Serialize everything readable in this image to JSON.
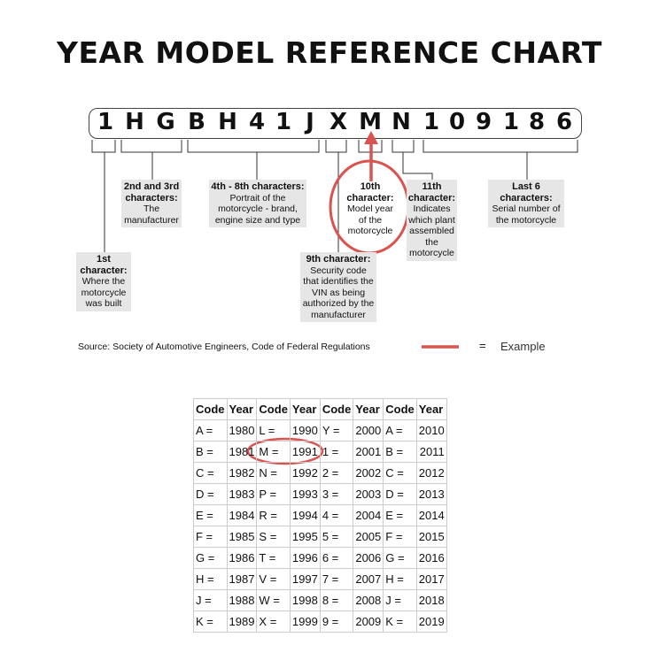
{
  "title": "YEAR MODEL REFERENCE CHART",
  "vin": [
    "1",
    "H",
    "G",
    "B",
    "H",
    "4",
    "1",
    "J",
    "X",
    "M",
    "N",
    "1",
    "0",
    "9",
    "1",
    "8",
    "6"
  ],
  "labels": {
    "c1": {
      "head": "1st character:",
      "body": "Where the motorcycle was built"
    },
    "c2": {
      "head": "2nd and 3rd characters:",
      "body": "The manufacturer"
    },
    "c4": {
      "head": "4th - 8th characters:",
      "body": "Portrait of the motorcycle - brand, engine size and type"
    },
    "c9": {
      "head": "9th character:",
      "body": "Security code that identifies the VIN as being authorized by the manufacturer"
    },
    "c10": {
      "head": "10th character:",
      "body": "Model year of the motorcycle"
    },
    "c11": {
      "head": "11th character:",
      "body": "Indicates which plant assembled the motorcycle"
    },
    "c12": {
      "head": "Last 6 characters:",
      "body": "Serial number of the motorcycle"
    }
  },
  "source": "Source:  Society of Automotive Engineers, Code of Federal Regulations",
  "legend": {
    "eq": "=",
    "label": "Example",
    "color": "#d9534f"
  },
  "table": {
    "headers": [
      "Code",
      "Year",
      "Code",
      "Year",
      "Code",
      "Year",
      "Code",
      "Year"
    ],
    "rows": [
      [
        "A =",
        "1980",
        "L =",
        "1990",
        "Y =",
        "2000",
        "A =",
        "2010"
      ],
      [
        "B =",
        "1981",
        "M =",
        "1991",
        "1 =",
        "2001",
        "B =",
        "2011"
      ],
      [
        "C =",
        "1982",
        "N =",
        "1992",
        "2 =",
        "2002",
        "C =",
        "2012"
      ],
      [
        "D =",
        "1983",
        "P =",
        "1993",
        "3 =",
        "2003",
        "D =",
        "2013"
      ],
      [
        "E =",
        "1984",
        "R =",
        "1994",
        "4 =",
        "2004",
        "E =",
        "2014"
      ],
      [
        "F =",
        "1985",
        "S =",
        "1995",
        "5 =",
        "2005",
        "F =",
        "2015"
      ],
      [
        "G =",
        "1986",
        "T =",
        "1996",
        "6 =",
        "2006",
        "G =",
        "2016"
      ],
      [
        "H =",
        "1987",
        "V =",
        "1997",
        "7 =",
        "2007",
        "H =",
        "2017"
      ],
      [
        "J =",
        "1988",
        "W =",
        "1998",
        "8 =",
        "2008",
        "J =",
        "2018"
      ],
      [
        "K =",
        "1989",
        "X =",
        "1999",
        "9 =",
        "2009",
        "K =",
        "2019"
      ]
    ]
  }
}
